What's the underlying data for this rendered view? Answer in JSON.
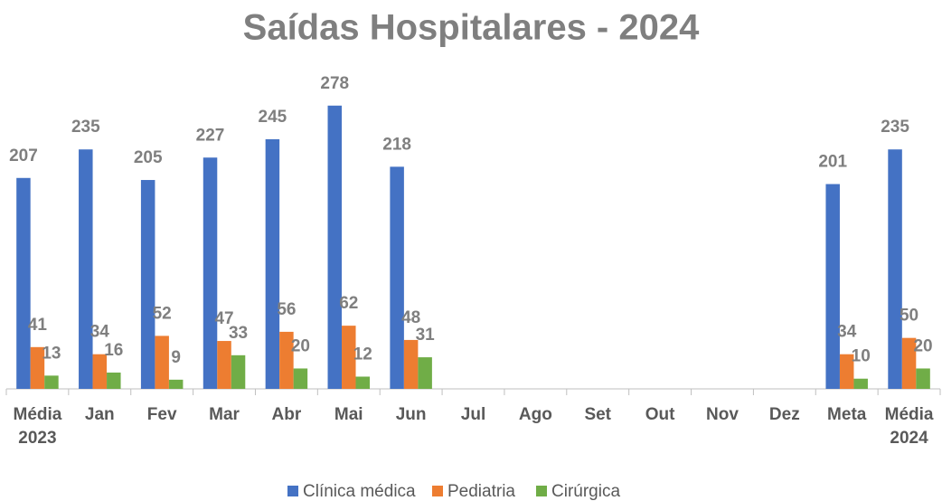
{
  "chart_data": {
    "type": "bar",
    "title": "Saídas Hospitalares - 2024",
    "categories": [
      "Média 2023",
      "Jan",
      "Fev",
      "Mar",
      "Abr",
      "Mai",
      "Jun",
      "Jul",
      "Ago",
      "Set",
      "Out",
      "Nov",
      "Dez",
      "Meta",
      "Média 2024"
    ],
    "series": [
      {
        "name": "Clínica médica",
        "color": "#4472c4",
        "values": [
          207,
          235,
          205,
          227,
          245,
          278,
          218,
          null,
          null,
          null,
          null,
          null,
          null,
          201,
          235
        ]
      },
      {
        "name": "Pediatria",
        "color": "#ed7d31",
        "values": [
          41,
          34,
          52,
          47,
          56,
          62,
          48,
          null,
          null,
          null,
          null,
          null,
          null,
          34,
          50
        ]
      },
      {
        "name": "Cirúrgica",
        "color": "#70ad47",
        "values": [
          13,
          16,
          9,
          33,
          20,
          12,
          31,
          null,
          null,
          null,
          null,
          null,
          null,
          10,
          20
        ]
      }
    ],
    "ylim": [
      0,
      300
    ],
    "legend": "bottom"
  }
}
